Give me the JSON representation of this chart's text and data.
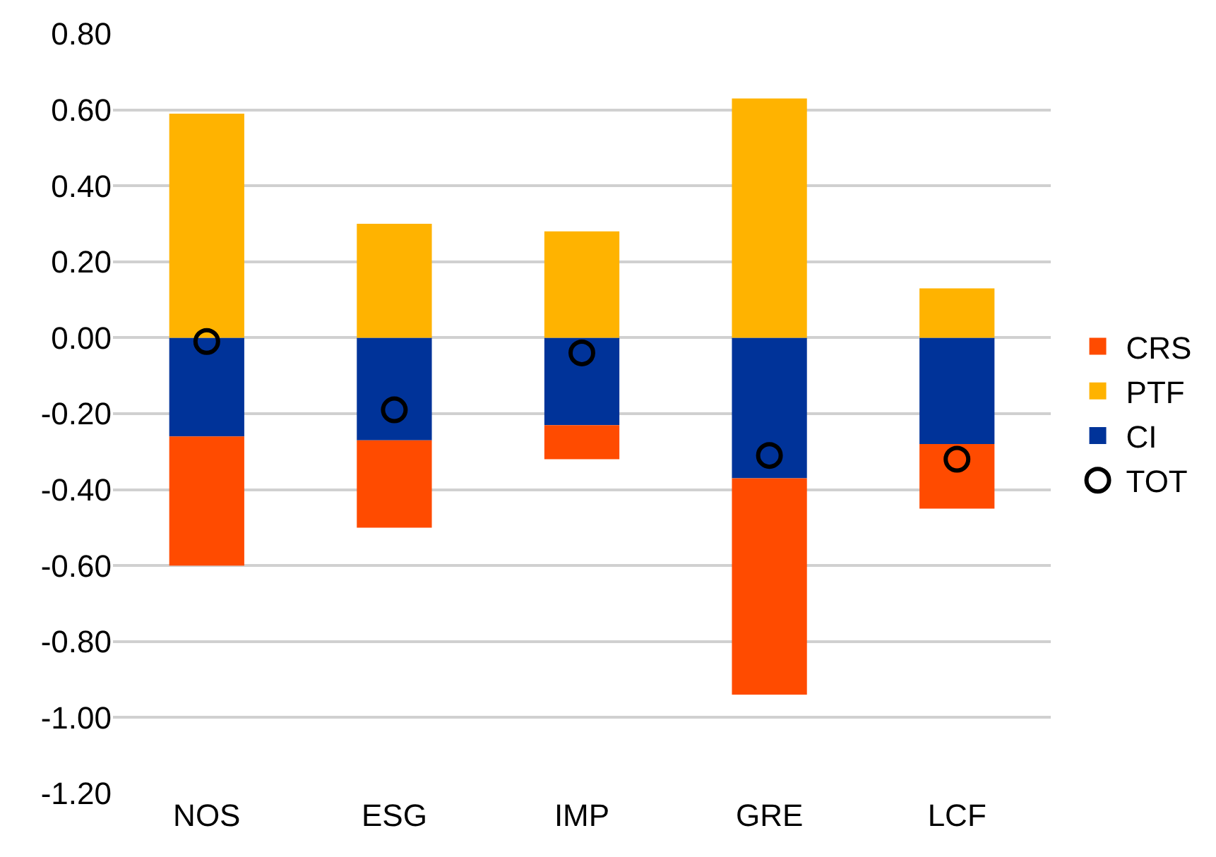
{
  "chart_data": {
    "type": "bar",
    "stacked": true,
    "categories": [
      "NOS",
      "ESG",
      "IMP",
      "GRE",
      "LCF"
    ],
    "series": [
      {
        "name": "CI",
        "color": "#003399",
        "values": [
          -0.26,
          -0.27,
          -0.23,
          -0.37,
          -0.28
        ]
      },
      {
        "name": "PTF",
        "color": "#ffb300",
        "values": [
          0.59,
          0.3,
          0.28,
          0.63,
          0.13
        ]
      },
      {
        "name": "CRS",
        "color": "#ff4b00",
        "values": [
          -0.34,
          -0.23,
          -0.09,
          -0.57,
          -0.17
        ]
      },
      {
        "name": "TOT",
        "type": "scatter",
        "marker": "circle",
        "color": "#000000",
        "values": [
          -0.01,
          -0.19,
          -0.04,
          -0.31,
          -0.32
        ]
      }
    ],
    "ylim": [
      -1.2,
      0.8
    ],
    "yticks": [
      {
        "value": -1.2,
        "label": "-1.20"
      },
      {
        "value": -1.0,
        "label": "-1.00"
      },
      {
        "value": -0.8,
        "label": "-0.80"
      },
      {
        "value": -0.6,
        "label": "-0.60"
      },
      {
        "value": -0.4,
        "label": "-0.40"
      },
      {
        "value": -0.2,
        "label": "-0.20"
      },
      {
        "value": 0,
        "label": "0.00"
      },
      {
        "value": 0.2,
        "label": "0.20"
      },
      {
        "value": 0.4,
        "label": "0.40"
      },
      {
        "value": 0.6,
        "label": "0.60"
      },
      {
        "value": 0.8,
        "label": "0.80"
      }
    ],
    "grid": "y",
    "legend": "right"
  }
}
